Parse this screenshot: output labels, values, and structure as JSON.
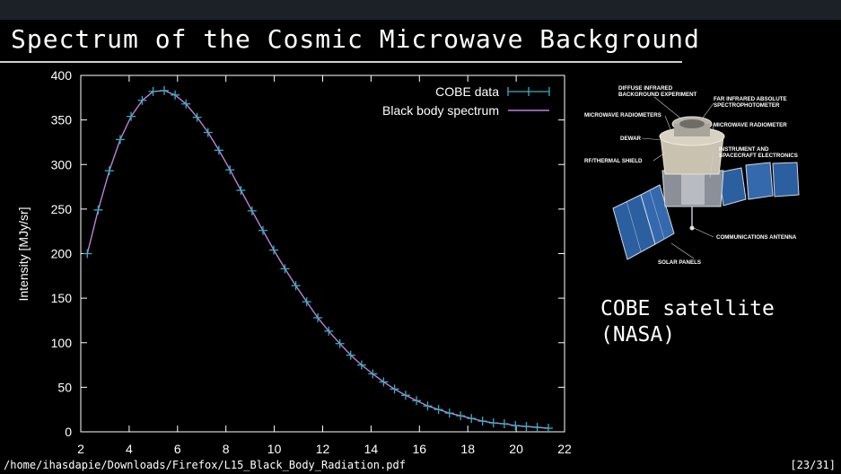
{
  "slide": {
    "title": "Spectrum of the Cosmic Microwave Background",
    "caption_line1": "COBE satellite",
    "caption_line2": "(NASA)"
  },
  "satellite_labels": {
    "diffuse_1": "DIFFUSE INFRARED",
    "diffuse_2": "BACKGROUND EXPERIMENT",
    "far_ir_1": "FAR INFRARED ABSOLUTE",
    "far_ir_2": "SPECTROPHOTOMETER",
    "mw_radiometers": "MICROWAVE RADIOMETERS",
    "mw_radiometer": "MICROWAVE RADIOMETER",
    "dewar": "DEWAR",
    "instrument_1": "INSTRUMENT AND",
    "instrument_2": "SPACECRAFT ELECTRONICS",
    "rf_shield": "RF/THERMAL SHIELD",
    "comm_antenna": "COMMUNICATIONS ANTENNA",
    "solar_panels": "SOLAR PANELS"
  },
  "status": {
    "path": "/home/ihasdapie/Downloads/Firefox/L15_Black_Body_Radiation.pdf",
    "page": "[23/31]"
  },
  "chart_data": {
    "type": "line",
    "xlabel": "",
    "ylabel": "Intensity [MJy/sr]",
    "xlim": [
      2,
      22
    ],
    "ylim": [
      0,
      400
    ],
    "xticks": [
      2,
      4,
      6,
      8,
      10,
      12,
      14,
      16,
      18,
      20,
      22
    ],
    "yticks": [
      0,
      50,
      100,
      150,
      200,
      250,
      300,
      350,
      400
    ],
    "legend_position": "top-right",
    "grid": false,
    "series": [
      {
        "name": "COBE data",
        "style": "points-errorbars",
        "color": "#3aaec0",
        "x": [
          2.27,
          2.72,
          3.18,
          3.63,
          4.08,
          4.54,
          4.99,
          5.45,
          5.9,
          6.35,
          6.81,
          7.26,
          7.71,
          8.17,
          8.62,
          9.08,
          9.53,
          9.98,
          10.44,
          10.89,
          11.34,
          11.8,
          12.25,
          12.71,
          13.16,
          13.61,
          14.07,
          14.52,
          14.97,
          15.43,
          15.88,
          16.34,
          16.79,
          17.24,
          17.7,
          18.15,
          18.61,
          19.06,
          19.51,
          19.97,
          20.42,
          20.87,
          21.33
        ],
        "y": [
          200,
          249,
          293,
          328,
          354,
          372,
          382,
          383,
          378,
          368,
          353,
          336,
          316,
          294,
          271,
          248,
          226,
          204,
          183,
          164,
          146,
          128,
          113,
          99,
          86,
          75,
          65,
          56,
          48,
          41,
          35,
          29,
          25,
          21,
          18,
          15,
          12,
          10,
          9,
          7,
          6,
          5,
          4
        ]
      },
      {
        "name": "Black body spectrum",
        "style": "line",
        "color": "#c080d8",
        "x": [
          2.27,
          2.72,
          3.18,
          3.63,
          4.08,
          4.54,
          4.99,
          5.45,
          5.9,
          6.35,
          6.81,
          7.26,
          7.71,
          8.17,
          8.62,
          9.08,
          9.53,
          9.98,
          10.44,
          10.89,
          11.34,
          11.8,
          12.25,
          12.71,
          13.16,
          13.61,
          14.07,
          14.52,
          14.97,
          15.43,
          15.88,
          16.34,
          16.79,
          17.24,
          17.7,
          18.15,
          18.61,
          19.06,
          19.51,
          19.97,
          20.42,
          20.87,
          21.33
        ],
        "y": [
          200,
          249,
          293,
          328,
          354,
          372,
          382,
          383,
          378,
          368,
          353,
          336,
          316,
          294,
          271,
          248,
          226,
          204,
          183,
          164,
          146,
          128,
          113,
          99,
          86,
          75,
          65,
          56,
          48,
          41,
          35,
          29,
          25,
          21,
          18,
          15,
          12,
          10,
          9,
          7,
          6,
          5,
          4
        ]
      }
    ]
  }
}
